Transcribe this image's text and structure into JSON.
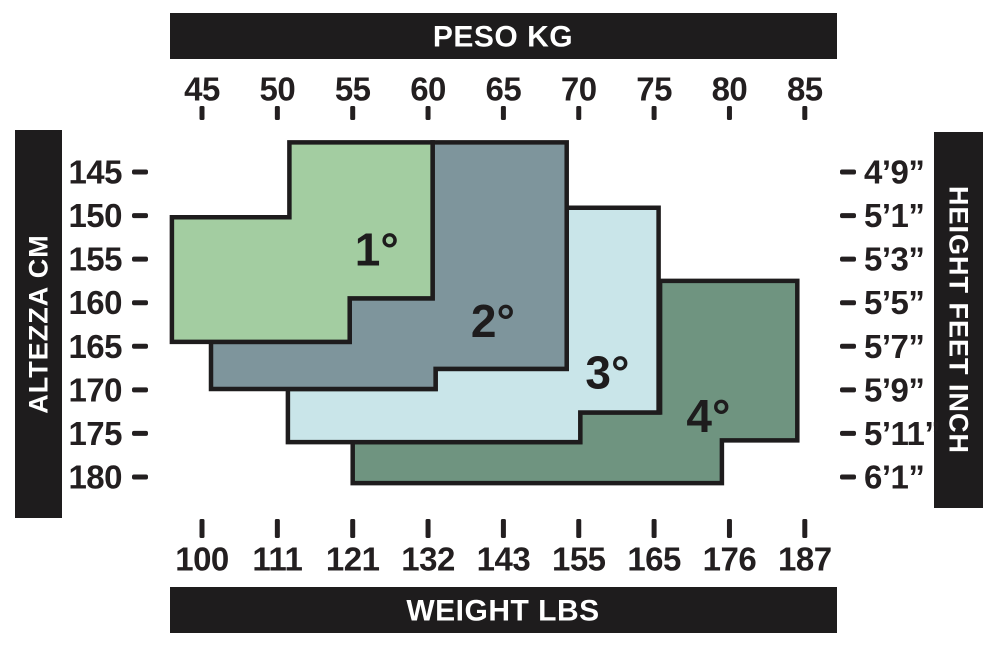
{
  "bars": {
    "top": {
      "label": "PESO KG"
    },
    "bottom": {
      "label": "WEIGHT LBS"
    },
    "left": {
      "label": "ALTEZZA CM"
    },
    "right": {
      "label": "HEIGHT FEET INCH"
    }
  },
  "colors": {
    "ink": "#231f20",
    "bar_background": "#1e1c1d",
    "bar_text": "#ffffff",
    "zone_stroke": "#1e1c1d",
    "zone1": "#a3cda1",
    "zone2": "#7e959c",
    "zone3": "#c9e5e9",
    "zone4": "#6f9480"
  },
  "chart_data": {
    "type": "area",
    "subtype": "overlapping-size-zones",
    "grid": false,
    "axis_ranges": {
      "weight_kg": [
        45,
        85
      ],
      "height_cm": [
        145,
        180
      ]
    },
    "top_axis": {
      "title": "PESO KG",
      "ticks_kg": [
        45,
        50,
        55,
        60,
        65,
        70,
        75,
        80,
        85
      ]
    },
    "bottom_axis": {
      "title": "WEIGHT LBS",
      "tick_labels_lbs": [
        "100",
        "111",
        "121",
        "132",
        "143",
        "155",
        "165",
        "176",
        "187"
      ]
    },
    "left_axis": {
      "title": "ALTEZZA CM",
      "ticks_cm": [
        145,
        150,
        155,
        160,
        165,
        170,
        175,
        180
      ]
    },
    "right_axis": {
      "title": "HEIGHT FEET INCH",
      "tick_labels_ft_in": [
        "4’9”",
        "5’1”",
        "5’3”",
        "5’5”",
        "5’7”",
        "5’9”",
        "5’11”",
        "6’1”"
      ]
    },
    "zones": [
      {
        "id": "1",
        "label": "1°",
        "color": "#a3cda1",
        "label_anchor_kg_cm": [
          56.6,
          153.9
        ],
        "outline_kg_cm": [
          [
            50.8,
            141.6
          ],
          [
            60.3,
            141.6
          ],
          [
            60.3,
            159.5
          ],
          [
            54.8,
            159.5
          ],
          [
            54.8,
            164.5
          ],
          [
            43.0,
            164.5
          ],
          [
            43.0,
            150.2
          ],
          [
            50.8,
            150.2
          ]
        ]
      },
      {
        "id": "2",
        "label": "2°",
        "color": "#7e959c",
        "label_anchor_kg_cm": [
          64.3,
          162.1
        ],
        "outline_kg_cm": [
          [
            60.3,
            141.6
          ],
          [
            69.2,
            141.6
          ],
          [
            69.2,
            167.6
          ],
          [
            60.5,
            167.6
          ],
          [
            60.5,
            169.9
          ],
          [
            45.6,
            169.9
          ],
          [
            45.6,
            164.5
          ],
          [
            54.8,
            164.5
          ],
          [
            54.8,
            159.5
          ],
          [
            60.3,
            159.5
          ]
        ]
      },
      {
        "id": "3",
        "label": "3°",
        "color": "#c9e5e9",
        "label_anchor_kg_cm": [
          71.9,
          168.0
        ],
        "outline_kg_cm": [
          [
            69.2,
            149.1
          ],
          [
            75.3,
            149.1
          ],
          [
            75.3,
            172.6
          ],
          [
            70.1,
            172.6
          ],
          [
            70.1,
            176.0
          ],
          [
            50.7,
            176.0
          ],
          [
            50.7,
            169.9
          ],
          [
            60.5,
            169.9
          ],
          [
            60.5,
            167.6
          ],
          [
            69.2,
            167.6
          ]
        ]
      },
      {
        "id": "4",
        "label": "4°",
        "color": "#6f9480",
        "label_anchor_kg_cm": [
          78.6,
          173.0
        ],
        "outline_kg_cm": [
          [
            75.4,
            157.5
          ],
          [
            84.5,
            157.5
          ],
          [
            84.5,
            175.8
          ],
          [
            79.5,
            175.8
          ],
          [
            79.5,
            180.7
          ],
          [
            55.0,
            180.7
          ],
          [
            55.0,
            176.0
          ],
          [
            70.1,
            176.0
          ],
          [
            70.1,
            172.6
          ],
          [
            75.4,
            172.6
          ]
        ]
      }
    ]
  }
}
